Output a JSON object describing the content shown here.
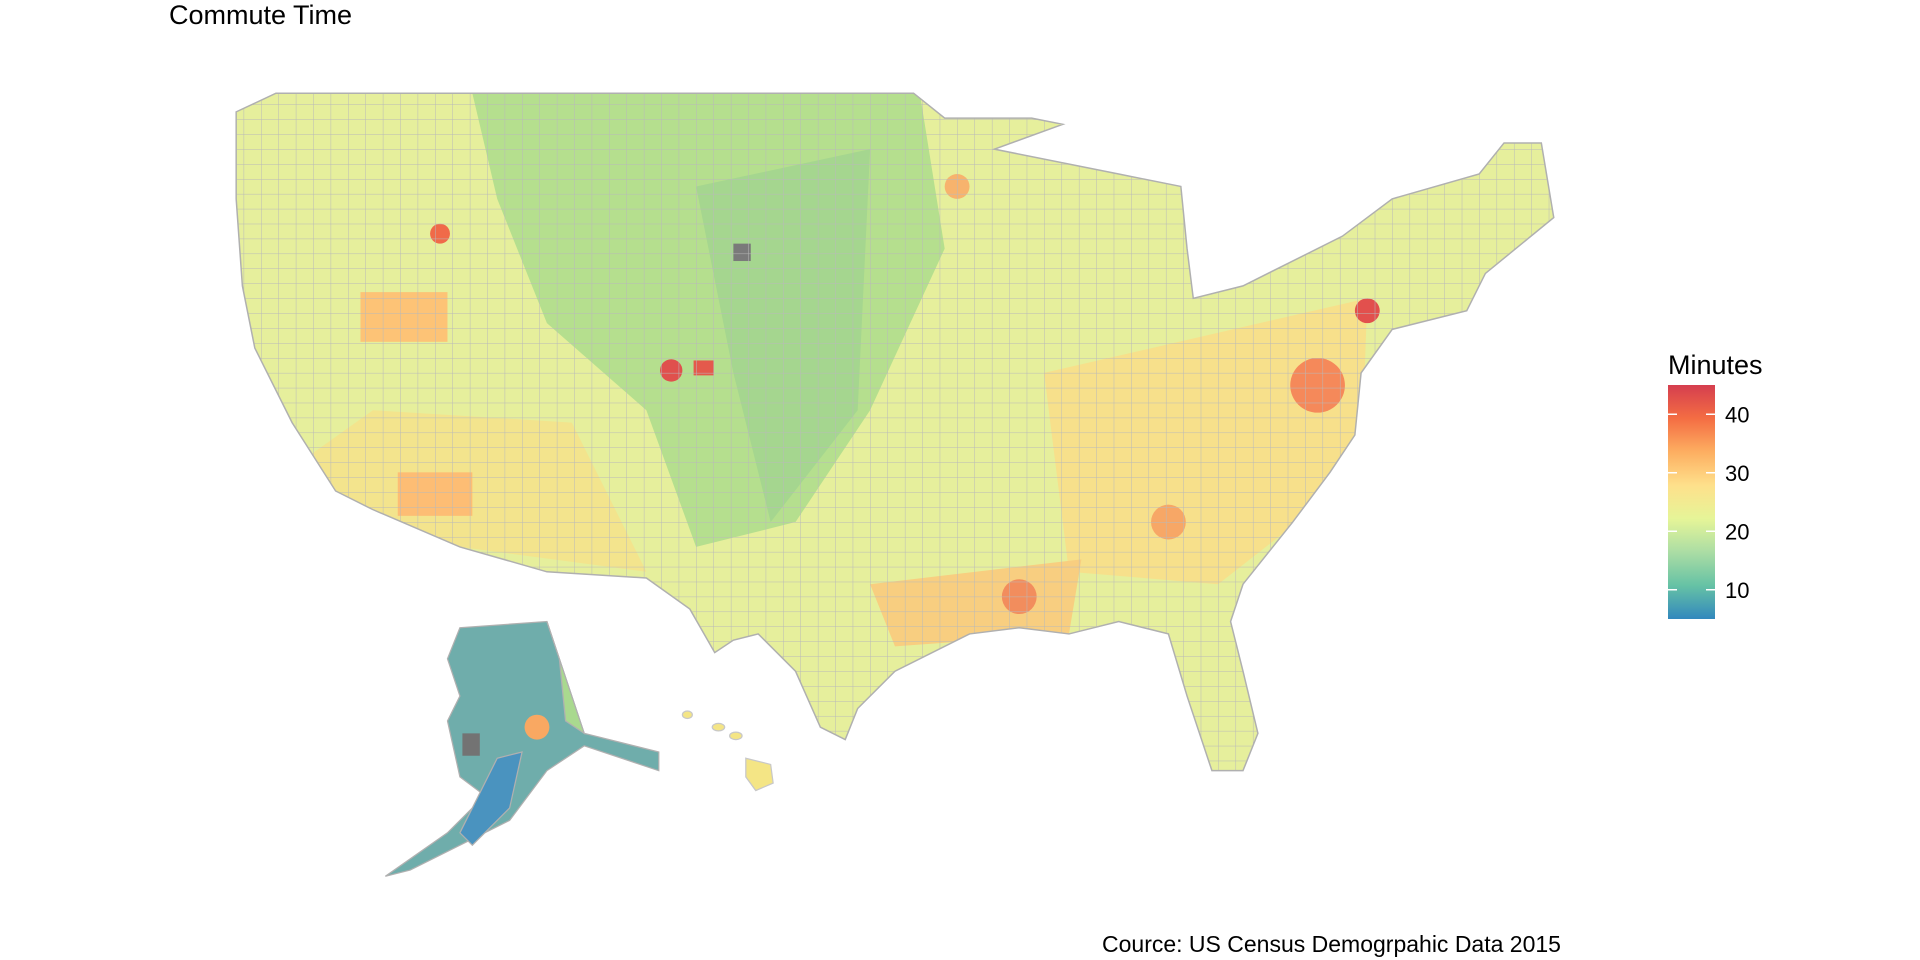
{
  "title": "Commute Time",
  "legend": {
    "title": "Minutes",
    "range": [
      5,
      45
    ],
    "ticks": [
      10,
      20,
      30,
      40
    ],
    "colors": [
      "#3288bd",
      "#66c2a5",
      "#abdda4",
      "#e6f598",
      "#fee08b",
      "#fdae61",
      "#f46d43",
      "#d53e4f"
    ]
  },
  "caption": "Cource: US Census Demogrpahic Data 2015"
}
